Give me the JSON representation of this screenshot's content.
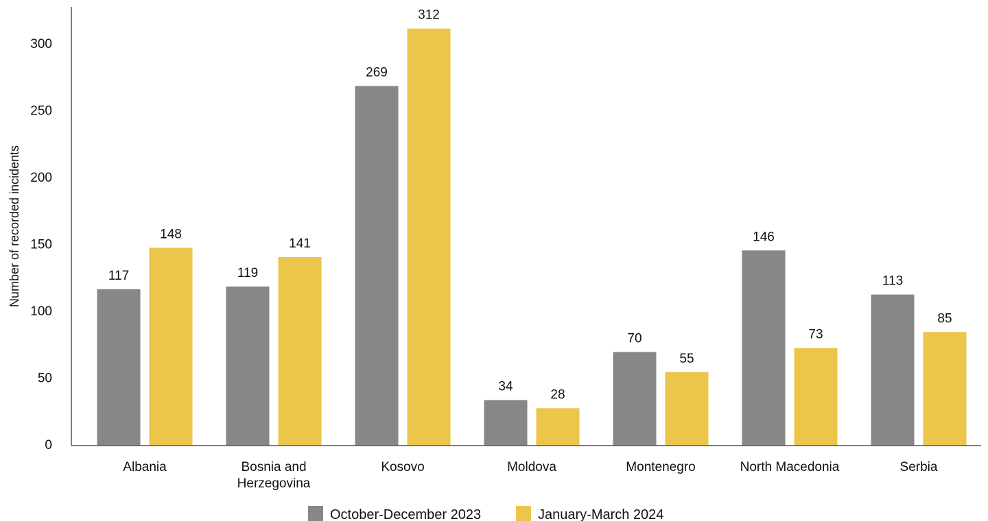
{
  "chart_data": {
    "type": "bar",
    "title": "",
    "xlabel": "",
    "ylabel": "Number of recorded incidents",
    "ylim": [
      0,
      300
    ],
    "yticks": [
      0,
      50,
      100,
      150,
      200,
      250,
      300
    ],
    "grid": false,
    "legend_position": "bottom",
    "categories": [
      [
        "Albania"
      ],
      [
        "Bosnia and",
        "Herzegovina"
      ],
      [
        "Kosovo"
      ],
      [
        "Moldova"
      ],
      [
        "Montenegro"
      ],
      [
        "North Macedonia"
      ],
      [
        "Serbia"
      ]
    ],
    "series": [
      {
        "name": "October-December 2023",
        "color": "#878787",
        "values": [
          117,
          119,
          269,
          34,
          70,
          146,
          113
        ]
      },
      {
        "name": "January-March 2024",
        "color": "#ECC54B",
        "values": [
          148,
          141,
          312,
          28,
          55,
          73,
          85
        ]
      }
    ]
  }
}
